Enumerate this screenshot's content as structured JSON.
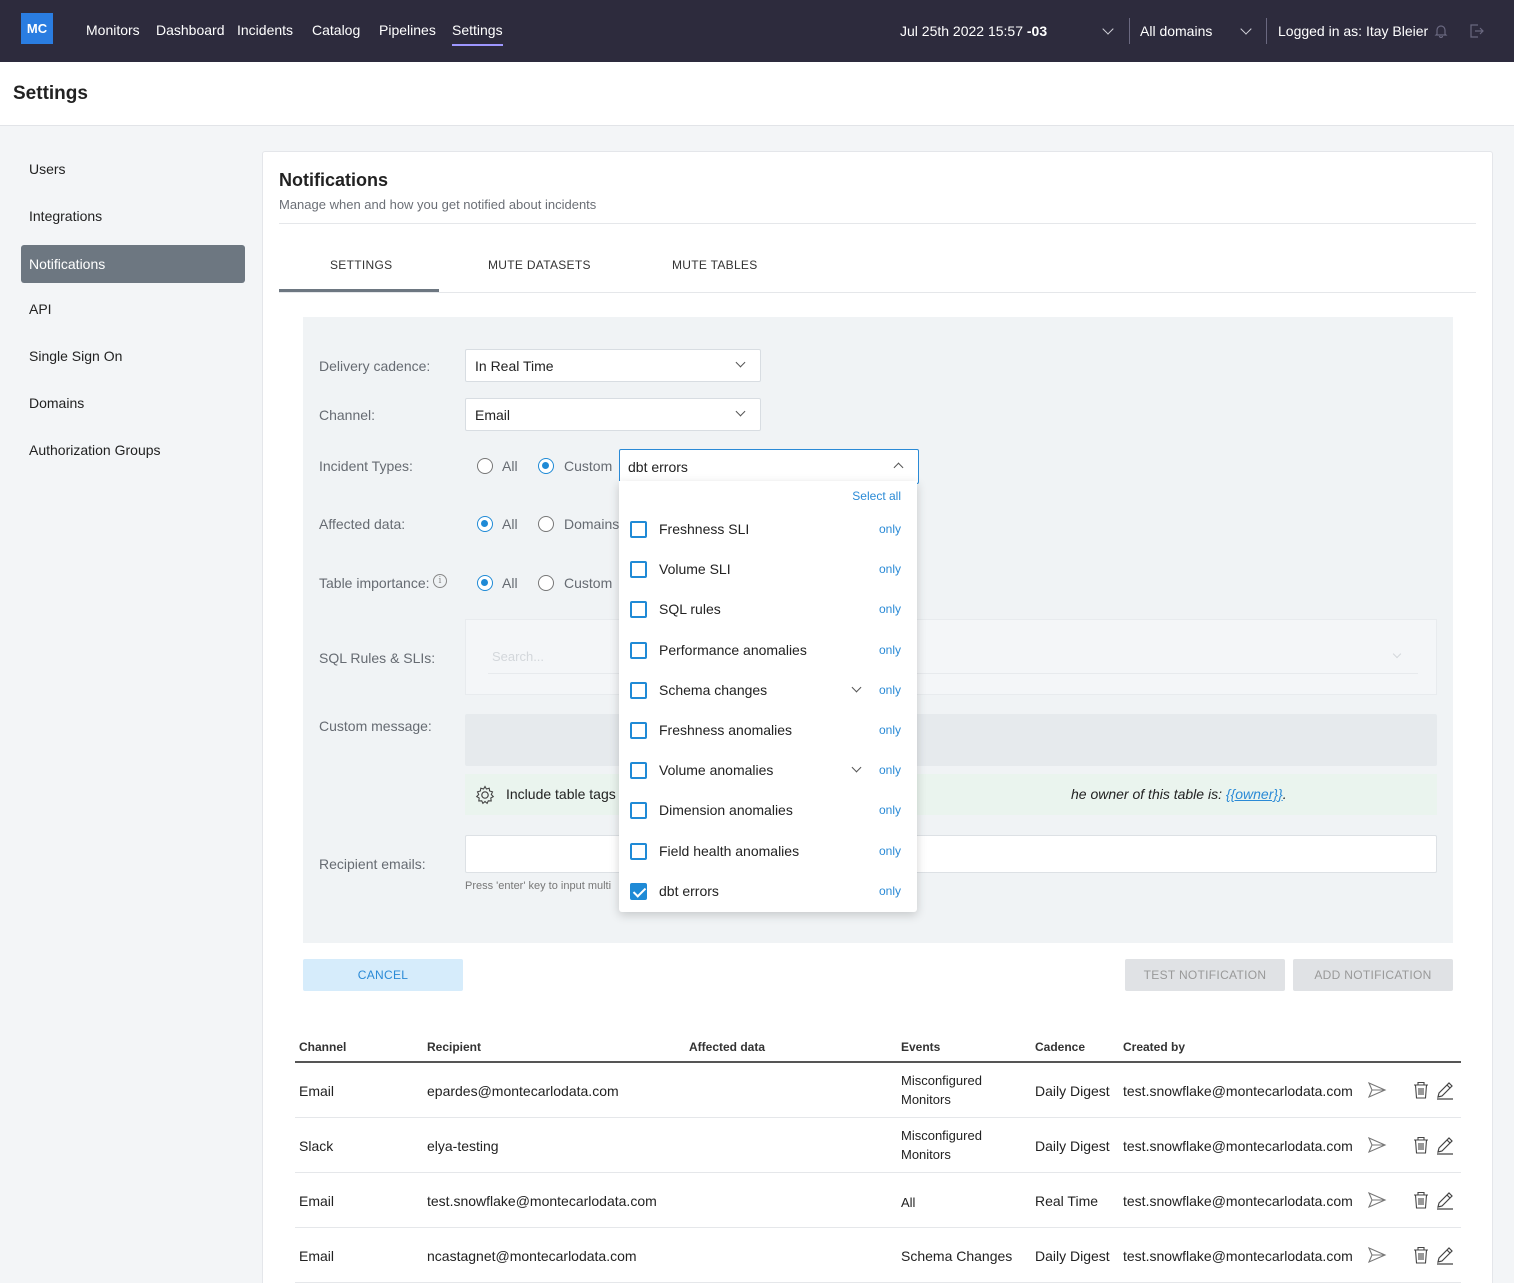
{
  "nav": {
    "logo": "MC",
    "links": [
      "Monitors",
      "Dashboard",
      "Incidents",
      "Catalog",
      "Pipelines",
      "Settings"
    ],
    "active": "Settings",
    "date_main": "Jul 25th 2022 15:57",
    "date_tz": "-03",
    "domain": "All domains",
    "user": "Logged in as: Itay Bleier"
  },
  "page": {
    "title": "Settings"
  },
  "sidebar": {
    "items": [
      "Users",
      "Integrations",
      "Notifications",
      "API",
      "Single Sign On",
      "Domains",
      "Authorization Groups"
    ],
    "active": "Notifications"
  },
  "card": {
    "title": "Notifications",
    "subtitle": "Manage when and how you get notified about incidents",
    "tabs": [
      "SETTINGS",
      "MUTE DATASETS",
      "MUTE TABLES"
    ],
    "active_tab": "SETTINGS"
  },
  "form": {
    "delivery_label": "Delivery cadence:",
    "delivery_value": "In Real Time",
    "channel_label": "Channel:",
    "channel_value": "Email",
    "incident_label": "Incident Types:",
    "incident_options": [
      "All",
      "Custom"
    ],
    "incident_selected": "Custom",
    "incident_value": "dbt errors",
    "affected_label": "Affected data:",
    "affected_options": [
      "All",
      "Domains"
    ],
    "affected_selected": "All",
    "importance_label": "Table importance:",
    "importance_options": [
      "All",
      "Custom"
    ],
    "importance_selected": "All",
    "sql_label": "SQL Rules & SLIs:",
    "sql_placeholder": "Search...",
    "message_label": "Custom message:",
    "tag_note_start": "Include table tags i",
    "tag_note_end": "he owner of this table is: ",
    "tag_note_token": "{{owner}}",
    "tag_note_dot": ".",
    "recipients_label": "Recipient emails:",
    "recipients_hint": "Press 'enter' key to input multi"
  },
  "dropdown": {
    "select_all": "Select all",
    "only_label": "only",
    "items": [
      {
        "label": "Freshness SLI",
        "checked": false,
        "expandable": false
      },
      {
        "label": "Volume SLI",
        "checked": false,
        "expandable": false
      },
      {
        "label": "SQL rules",
        "checked": false,
        "expandable": false
      },
      {
        "label": "Performance anomalies",
        "checked": false,
        "expandable": false
      },
      {
        "label": "Schema changes",
        "checked": false,
        "expandable": true
      },
      {
        "label": "Freshness anomalies",
        "checked": false,
        "expandable": false
      },
      {
        "label": "Volume anomalies",
        "checked": false,
        "expandable": true
      },
      {
        "label": "Dimension anomalies",
        "checked": false,
        "expandable": false
      },
      {
        "label": "Field health anomalies",
        "checked": false,
        "expandable": false
      },
      {
        "label": "dbt errors",
        "checked": true,
        "expandable": false
      }
    ]
  },
  "buttons": {
    "cancel": "CANCEL",
    "test": "TEST NOTIFICATION",
    "add": "ADD NOTIFICATION"
  },
  "table": {
    "headers": [
      "Channel",
      "Recipient",
      "Affected data",
      "Events",
      "Cadence",
      "Created by"
    ],
    "rows": [
      {
        "channel": "Email",
        "recipient": "epardes@montecarlodata.com",
        "affected": "",
        "events": "Misconfigured Monitors",
        "cadence": "Daily Digest",
        "created_by": "test.snowflake@montecarlodata.com"
      },
      {
        "channel": "Slack",
        "recipient": "elya-testing",
        "affected": "",
        "events": "Misconfigured Monitors",
        "cadence": "Daily Digest",
        "created_by": "test.snowflake@montecarlodata.com"
      },
      {
        "channel": "Email",
        "recipient": "test.snowflake@montecarlodata.com",
        "affected": "",
        "events": "All",
        "cadence": "Real Time",
        "created_by": "test.snowflake@montecarlodata.com"
      },
      {
        "channel": "Email",
        "recipient": "ncastagnet@montecarlodata.com",
        "affected": "",
        "events": "Schema Changes",
        "cadence": "Daily Digest",
        "created_by": "test.snowflake@montecarlodata.com"
      }
    ]
  },
  "colors": {
    "nav_bg": "#2d2b3d",
    "accent": "#1f8ad6",
    "sidebar_active": "#6d7781",
    "panel_bg": "#f0f3f5"
  }
}
